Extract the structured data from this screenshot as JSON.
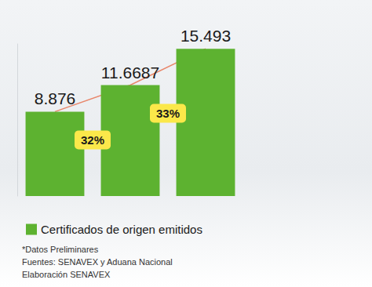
{
  "chart_data": {
    "type": "bar",
    "categories": [
      null,
      null,
      null
    ],
    "series": [
      {
        "name": "Certificados de origen emitidos",
        "color": "#5db230",
        "values": [
          8.876,
          11.6687,
          15.493
        ]
      }
    ],
    "ylim": [
      0,
      16
    ],
    "data_labels": true,
    "tick_labels": false,
    "grid": false,
    "legend": "bottom-left",
    "annotations": [
      "32%",
      "33%"
    ],
    "notes": [
      "*Datos Preliminares",
      "Fuentes: SENAVEX y Aduana Nacional",
      "Elaboración SENAVEX"
    ]
  }
}
